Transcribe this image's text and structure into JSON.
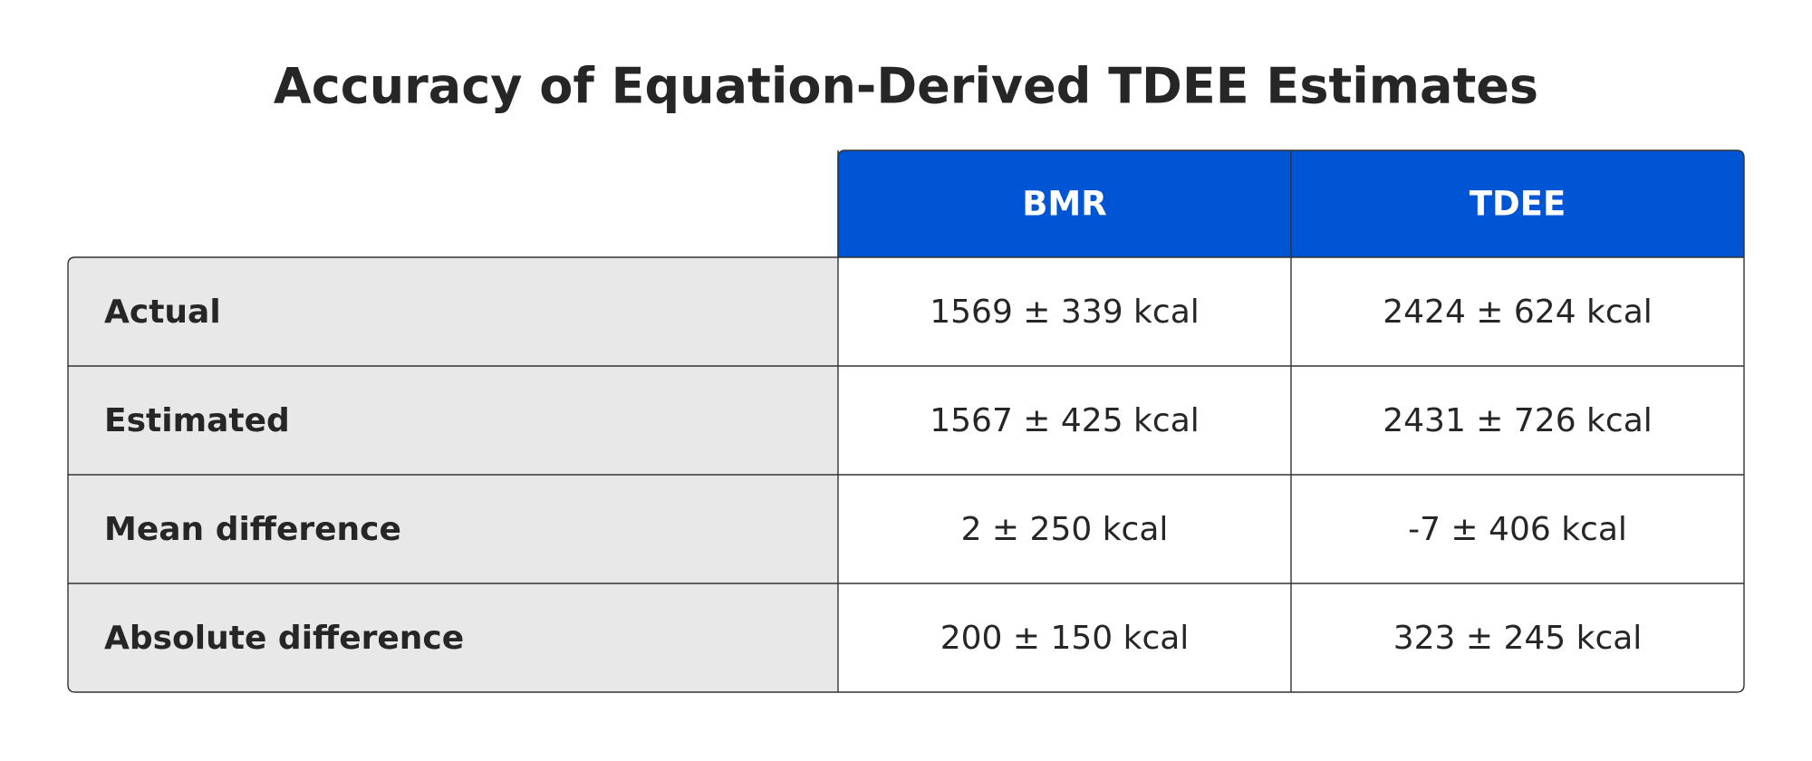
{
  "title": "Accuracy of Equation-Derived TDEE Estimates",
  "table": {
    "columns": [
      "BMR",
      "TDEE"
    ],
    "rows": [
      [
        "Actual",
        "1569 ± 339 kcal",
        "2424 ± 624 kcal"
      ],
      [
        "Estimated",
        "1567 ± 425 kcal",
        "2431 ± 726 kcal"
      ],
      [
        "Mean difference",
        "2 ± 250 kcal",
        "-7 ± 406 kcal"
      ],
      [
        "Absolute difference",
        "200 ± 150 kcal",
        "323 ± 245 kcal"
      ]
    ]
  }
}
